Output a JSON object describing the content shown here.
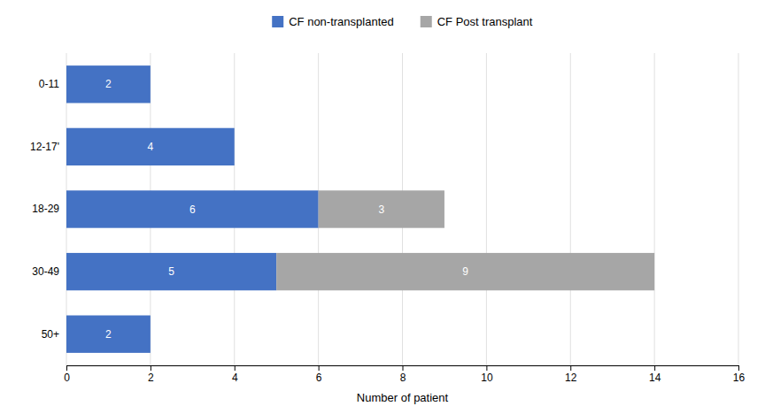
{
  "chart_data": {
    "type": "bar",
    "orientation": "horizontal",
    "stacked": true,
    "categories": [
      "0-11",
      "12-17'",
      "18-29",
      "30-49",
      "50+"
    ],
    "series": [
      {
        "name": "CF non-transplanted",
        "color": "#4472C4",
        "values": [
          2,
          4,
          6,
          5,
          2
        ]
      },
      {
        "name": "CF Post transplant",
        "color": "#A6A6A6",
        "values": [
          0,
          0,
          3,
          9,
          0
        ]
      }
    ],
    "xlabel": "Number of patient",
    "xlim": [
      0,
      16
    ],
    "xticks": [
      0,
      2,
      4,
      6,
      8,
      10,
      12,
      14,
      16
    ],
    "grid": true,
    "data_labels": true,
    "legend": "top"
  }
}
